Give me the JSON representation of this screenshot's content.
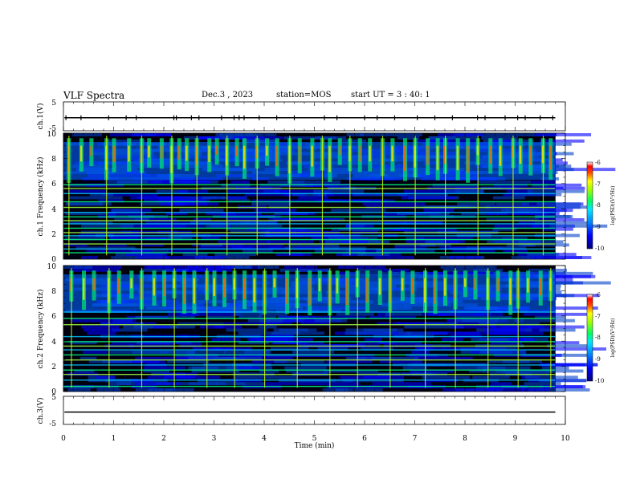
{
  "header": {
    "title": "VLF Spectra",
    "date": "Dec.3 , 2023",
    "station": "station=MOS",
    "start": "start UT = 3 : 40: 1"
  },
  "chart_data": [
    {
      "type": "line",
      "panel": "ch1-waveform",
      "ylabel": "ch.1(V)",
      "yticks": [
        "5",
        "-5"
      ],
      "ylim": [
        -5,
        5
      ],
      "xlim": [
        0,
        10
      ],
      "description_values": "flat trace near -0.5 V with brief spikes",
      "level": -0.5,
      "spike_times_min": [
        0.05,
        0.35,
        0.9,
        1.25,
        1.45,
        2.2,
        2.25,
        2.55,
        2.7,
        3.15,
        3.4,
        3.5,
        3.6,
        3.9,
        4.25,
        4.6,
        5.2,
        5.45,
        6.0,
        6.25,
        6.6,
        7.05,
        7.4,
        7.75,
        8.25,
        8.4,
        8.8,
        9.05,
        9.2,
        9.5,
        9.75
      ]
    },
    {
      "type": "heatmap",
      "panel": "ch1-spectrogram",
      "ylabel": "ch.1 Frequency (kHz)",
      "ylim": [
        0,
        10
      ],
      "yticks": [
        "0",
        "2",
        "4",
        "6",
        "8",
        "10"
      ],
      "xlim": [
        0,
        9.8
      ],
      "colorbar": {
        "label": "log(PSD)(V²/Hz)",
        "ticks": [
          "-6",
          "-7",
          "-8",
          "-9",
          "-10"
        ],
        "range": [
          -10,
          -6
        ]
      },
      "burst_times_min": [
        0.1,
        0.35,
        0.55,
        0.85,
        1.0,
        1.3,
        1.55,
        1.7,
        1.95,
        2.15,
        2.3,
        2.45,
        2.65,
        2.9,
        3.05,
        3.25,
        3.45,
        3.6,
        3.85,
        4.05,
        4.25,
        4.5,
        4.7,
        4.95,
        5.15,
        5.3,
        5.5,
        5.7,
        5.9,
        6.1,
        6.35,
        6.55,
        6.8,
        7.0,
        7.25,
        7.45,
        7.6,
        7.85,
        8.05,
        8.25,
        8.5,
        8.7,
        8.95,
        9.1,
        9.3,
        9.55,
        9.7
      ],
      "line_freqs_khz": [
        0.5,
        0.8,
        1.2,
        1.55,
        1.85,
        2.1,
        2.45,
        2.8,
        3.05,
        3.35,
        3.7,
        4.1,
        4.55,
        5.2,
        5.6,
        5.9
      ]
    },
    {
      "type": "heatmap",
      "panel": "ch2-spectrogram",
      "ylabel": "ch.2 Frequency (kHz)",
      "ylim": [
        0,
        10
      ],
      "yticks": [
        "0",
        "2",
        "4",
        "6",
        "8",
        "10"
      ],
      "xlim": [
        0,
        9.8
      ],
      "colorbar": {
        "label": "log(PSD)(V²/Hz)",
        "ticks": [
          "-6",
          "-7",
          "-8",
          "-9",
          "-10"
        ],
        "range": [
          -10,
          -6
        ]
      },
      "burst_times_min": [
        0.15,
        0.4,
        0.6,
        0.9,
        1.1,
        1.35,
        1.55,
        1.8,
        2.0,
        2.2,
        2.4,
        2.6,
        2.85,
        3.0,
        3.2,
        3.4,
        3.6,
        3.8,
        4.0,
        4.2,
        4.45,
        4.65,
        4.9,
        5.1,
        5.3,
        5.45,
        5.65,
        5.85,
        6.05,
        6.3,
        6.5,
        6.75,
        6.95,
        7.2,
        7.4,
        7.6,
        7.8,
        8.0,
        8.2,
        8.45,
        8.65,
        8.9,
        9.05,
        9.25,
        9.5,
        9.7
      ],
      "line_freqs_khz": [
        0.4,
        0.9,
        1.35,
        1.7,
        2.1,
        2.5,
        2.9,
        3.3,
        3.6,
        3.95,
        4.35,
        5.3,
        5.8,
        6.3
      ]
    },
    {
      "type": "line",
      "panel": "ch3-waveform",
      "ylabel": "ch.3(V)",
      "yticks": [
        "5",
        "-5"
      ],
      "ylim": [
        -5,
        5
      ],
      "xlim": [
        0,
        10
      ],
      "level": -0.6
    }
  ],
  "xaxis": {
    "label": "Time (min)",
    "ticks": [
      "0",
      "1",
      "2",
      "3",
      "4",
      "5",
      "6",
      "7",
      "8",
      "9",
      "10"
    ]
  }
}
